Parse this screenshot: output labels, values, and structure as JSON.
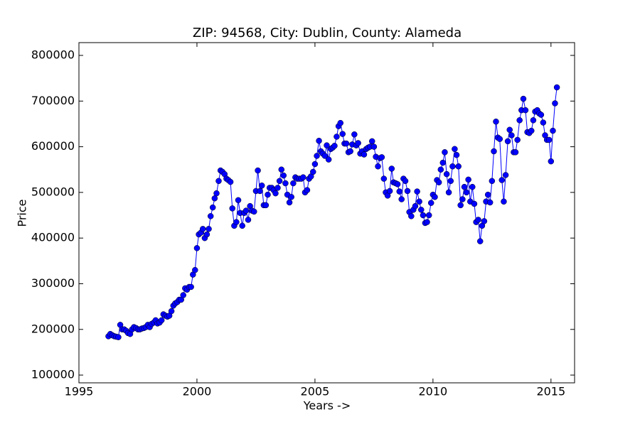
{
  "chart_data": {
    "type": "line",
    "title": "ZIP: 94568, City: Dublin, County: Alameda",
    "xlabel": "Years ->",
    "ylabel": "Price",
    "x": [
      1996.25,
      1996.33,
      1996.42,
      1996.5,
      1996.58,
      1996.67,
      1996.75,
      1996.83,
      1996.92,
      1997.0,
      1997.08,
      1997.17,
      1997.25,
      1997.33,
      1997.42,
      1997.5,
      1997.58,
      1997.67,
      1997.75,
      1997.83,
      1997.92,
      1998.0,
      1998.08,
      1998.17,
      1998.25,
      1998.33,
      1998.42,
      1998.5,
      1998.58,
      1998.67,
      1998.75,
      1998.83,
      1998.92,
      1999.0,
      1999.08,
      1999.17,
      1999.25,
      1999.33,
      1999.42,
      1999.5,
      1999.58,
      1999.67,
      1999.75,
      1999.83,
      1999.92,
      2000.0,
      2000.08,
      2000.17,
      2000.25,
      2000.33,
      2000.42,
      2000.5,
      2000.58,
      2000.67,
      2000.75,
      2000.83,
      2000.92,
      2001.0,
      2001.08,
      2001.17,
      2001.25,
      2001.33,
      2001.42,
      2001.5,
      2001.58,
      2001.67,
      2001.75,
      2001.83,
      2001.92,
      2002.0,
      2002.08,
      2002.17,
      2002.25,
      2002.33,
      2002.42,
      2002.5,
      2002.58,
      2002.67,
      2002.75,
      2002.83,
      2002.92,
      2003.0,
      2003.08,
      2003.17,
      2003.25,
      2003.33,
      2003.42,
      2003.5,
      2003.58,
      2003.67,
      2003.75,
      2003.83,
      2003.92,
      2004.0,
      2004.08,
      2004.17,
      2004.25,
      2004.33,
      2004.42,
      2004.5,
      2004.58,
      2004.67,
      2004.75,
      2004.83,
      2004.92,
      2005.0,
      2005.08,
      2005.17,
      2005.25,
      2005.33,
      2005.42,
      2005.5,
      2005.58,
      2005.67,
      2005.75,
      2005.83,
      2005.92,
      2006.0,
      2006.08,
      2006.17,
      2006.25,
      2006.33,
      2006.42,
      2006.5,
      2006.58,
      2006.67,
      2006.75,
      2006.83,
      2006.92,
      2007.0,
      2007.08,
      2007.17,
      2007.25,
      2007.33,
      2007.42,
      2007.5,
      2007.58,
      2007.67,
      2007.75,
      2007.83,
      2007.92,
      2008.0,
      2008.08,
      2008.17,
      2008.25,
      2008.33,
      2008.42,
      2008.5,
      2008.58,
      2008.67,
      2008.75,
      2008.83,
      2008.92,
      2009.0,
      2009.08,
      2009.17,
      2009.25,
      2009.33,
      2009.42,
      2009.5,
      2009.58,
      2009.67,
      2009.75,
      2009.83,
      2009.92,
      2010.0,
      2010.08,
      2010.17,
      2010.25,
      2010.33,
      2010.42,
      2010.5,
      2010.58,
      2010.67,
      2010.75,
      2010.83,
      2010.92,
      2011.0,
      2011.08,
      2011.17,
      2011.25,
      2011.33,
      2011.42,
      2011.5,
      2011.58,
      2011.67,
      2011.75,
      2011.83,
      2011.92,
      2012.0,
      2012.08,
      2012.17,
      2012.25,
      2012.33,
      2012.42,
      2012.5,
      2012.58,
      2012.67,
      2012.75,
      2012.83,
      2012.92,
      2013.0,
      2013.08,
      2013.17,
      2013.25,
      2013.33,
      2013.42,
      2013.5,
      2013.58,
      2013.67,
      2013.75,
      2013.83,
      2013.92,
      2014.0,
      2014.08,
      2014.17,
      2014.25,
      2014.33,
      2014.42,
      2014.5,
      2014.58,
      2014.67,
      2014.75,
      2014.83,
      2014.92,
      2015.0,
      2015.08,
      2015.17,
      2015.25
    ],
    "series": [
      {
        "name": "Price",
        "color": "#0000ff",
        "values": [
          185000,
          190000,
          187000,
          185000,
          184000,
          183000,
          210000,
          200000,
          200000,
          197000,
          192000,
          190000,
          200000,
          205000,
          203000,
          200000,
          200000,
          202000,
          203000,
          205000,
          210000,
          205000,
          212000,
          215000,
          220000,
          213000,
          215000,
          220000,
          233000,
          230000,
          228000,
          230000,
          240000,
          252000,
          257000,
          260000,
          265000,
          265000,
          275000,
          290000,
          287000,
          293000,
          293000,
          320000,
          330000,
          378000,
          408000,
          412000,
          420000,
          400000,
          408000,
          420000,
          448000,
          467000,
          487000,
          498000,
          525000,
          548000,
          545000,
          540000,
          530000,
          527000,
          523000,
          465000,
          427000,
          435000,
          483000,
          455000,
          427000,
          455000,
          460000,
          440000,
          470000,
          460000,
          458000,
          503000,
          548000,
          503000,
          515000,
          472000,
          472000,
          495000,
          510000,
          510000,
          505000,
          498000,
          510000,
          525000,
          550000,
          537000,
          520000,
          495000,
          478000,
          490000,
          520000,
          533000,
          530000,
          530000,
          530000,
          533000,
          500000,
          505000,
          530000,
          535000,
          545000,
          562000,
          580000,
          613000,
          590000,
          585000,
          580000,
          603000,
          572000,
          595000,
          598000,
          602000,
          622000,
          645000,
          652000,
          628000,
          607000,
          607000,
          588000,
          590000,
          605000,
          627000,
          603000,
          608000,
          585000,
          590000,
          583000,
          595000,
          598000,
          600000,
          612000,
          600000,
          578000,
          557000,
          575000,
          577000,
          530000,
          500000,
          493000,
          503000,
          552000,
          522000,
          520000,
          518000,
          502000,
          485000,
          530000,
          525000,
          503000,
          457000,
          448000,
          462000,
          470000,
          502000,
          480000,
          462000,
          450000,
          433000,
          435000,
          450000,
          477000,
          495000,
          490000,
          527000,
          522000,
          550000,
          565000,
          588000,
          540000,
          500000,
          525000,
          557000,
          595000,
          582000,
          557000,
          472000,
          485000,
          512000,
          500000,
          528000,
          480000,
          512000,
          475000,
          435000,
          440000,
          393000,
          427000,
          437000,
          480000,
          495000,
          478000,
          525000,
          590000,
          655000,
          620000,
          617000,
          527000,
          480000,
          538000,
          612000,
          637000,
          625000,
          588000,
          588000,
          615000,
          658000,
          680000,
          705000,
          680000,
          632000,
          630000,
          635000,
          658000,
          677000,
          680000,
          673000,
          670000,
          653000,
          625000,
          615000,
          615000,
          568000,
          635000,
          695000,
          730000
        ]
      }
    ],
    "xlim": [
      1995,
      2016
    ],
    "xticks": [
      1995,
      2000,
      2005,
      2010,
      2015
    ],
    "ylim": [
      83000,
      828000
    ],
    "yticks": [
      100000,
      200000,
      300000,
      400000,
      500000,
      600000,
      700000,
      800000
    ]
  }
}
